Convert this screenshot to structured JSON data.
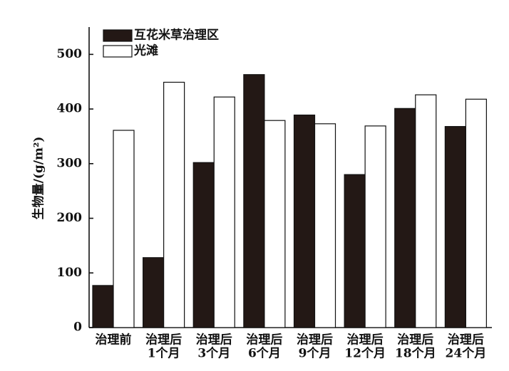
{
  "chart_data": {
    "type": "bar",
    "y_label": "生物量/(g/m²)",
    "categories": [
      [
        "治理前"
      ],
      [
        "治理后",
        "1个月"
      ],
      [
        "治理后",
        "3个月"
      ],
      [
        "治理后",
        "6个月"
      ],
      [
        "治理后",
        "9个月"
      ],
      [
        "治理后",
        "12个月"
      ],
      [
        "治理后",
        "18个月"
      ],
      [
        "治理后",
        "24个月"
      ]
    ],
    "series": [
      {
        "name": "互花米草治理区",
        "color": "#231815",
        "values": [
          77,
          128,
          302,
          463,
          389,
          280,
          401,
          368
        ]
      },
      {
        "name": "光滩",
        "color": "#ffffff",
        "values": [
          361,
          449,
          422,
          379,
          373,
          369,
          426,
          418
        ]
      }
    ],
    "ylim": [
      0,
      550
    ],
    "yticks": [
      0,
      100,
      200,
      300,
      400,
      500
    ]
  }
}
